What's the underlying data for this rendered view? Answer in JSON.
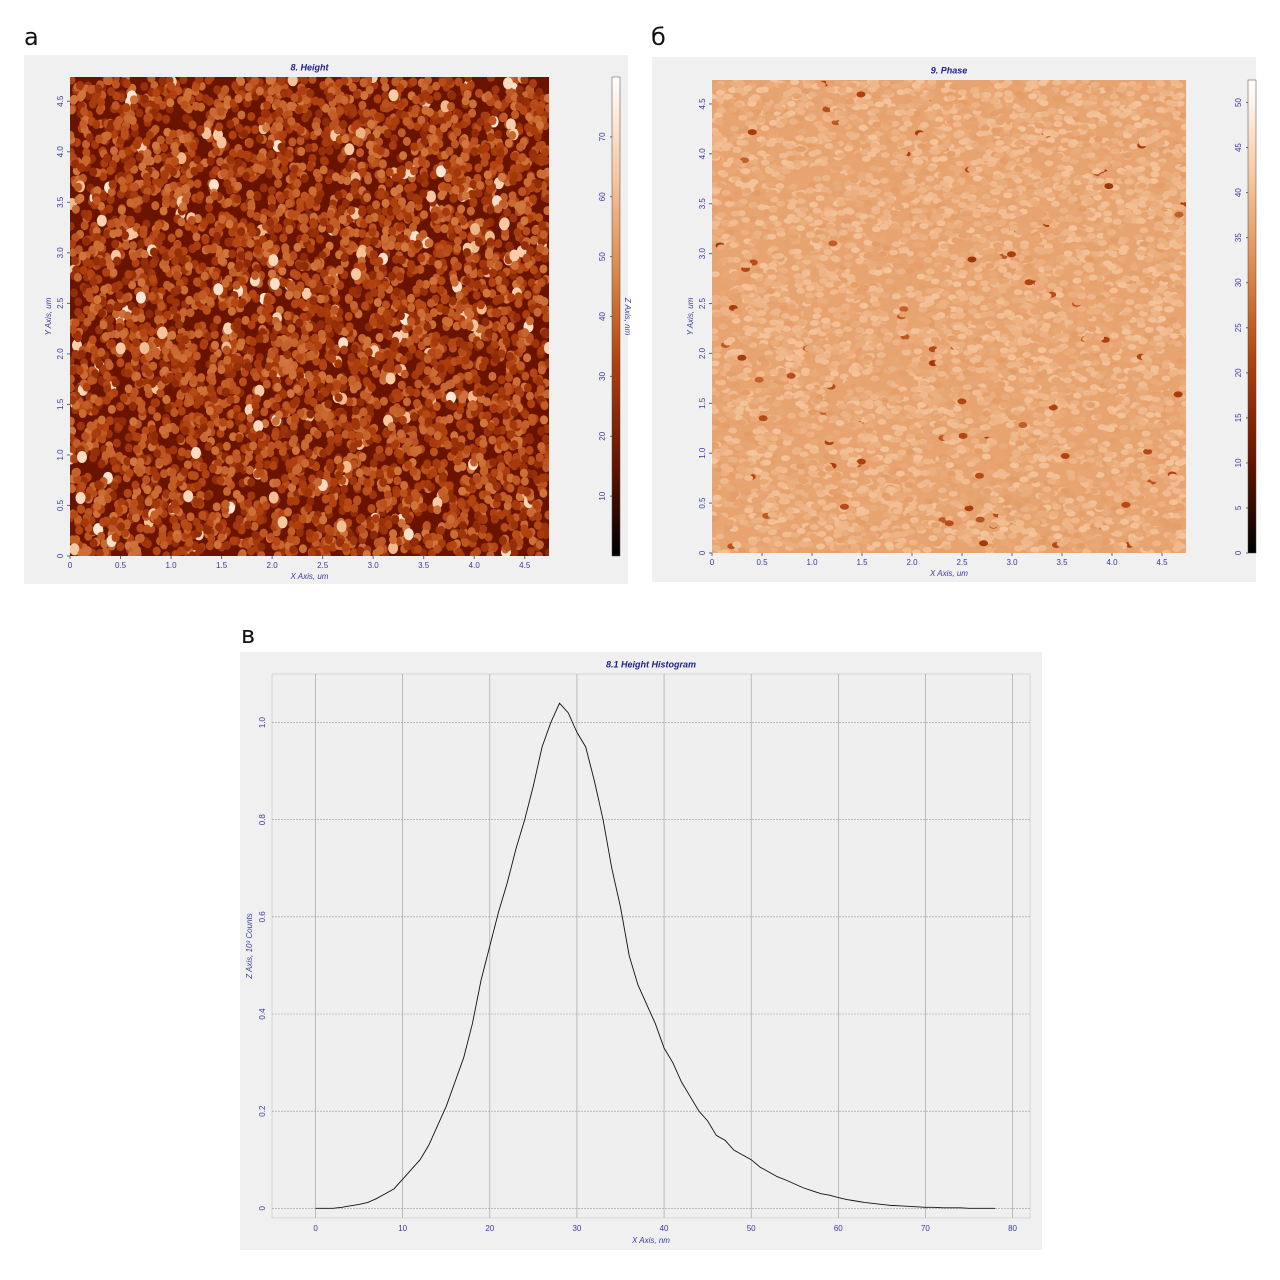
{
  "chart_data": [
    {
      "type": "heatmap",
      "label": "а",
      "title": "8. Height",
      "xlabel": "X Axis, um",
      "ylabel": "Y Axis, um",
      "zlabel": "Z Axis, nm",
      "xlim": [
        0,
        4.74
      ],
      "ylim": [
        0,
        4.74
      ],
      "xticks": [
        0,
        0.5,
        {
          "value": 1,
          "label": "1.0"
        },
        1.5,
        {
          "value": 2,
          "label": "2.0"
        },
        2.5,
        {
          "value": 3,
          "label": "3.0"
        },
        3.5,
        {
          "value": 4,
          "label": "4.0"
        },
        4.5
      ],
      "yticks": [
        0,
        0.5,
        {
          "value": 1,
          "label": "1.0"
        },
        1.5,
        {
          "value": 2,
          "label": "2.0"
        },
        2.5,
        {
          "value": 3,
          "label": "3.0"
        },
        3.5,
        {
          "value": 4,
          "label": "4.0"
        },
        4.5
      ],
      "zlim": [
        0,
        80
      ],
      "zticks": [
        10,
        20,
        30,
        40,
        50,
        60,
        70
      ],
      "colormap": [
        "#000000",
        "#6a1400",
        "#b0400e",
        "#dd8a4e",
        "#f7caa4",
        "#ffffff"
      ]
    },
    {
      "type": "heatmap",
      "label": "б",
      "title": "9. Phase",
      "xlabel": "X Axis, um",
      "ylabel": "Y Axis, um",
      "xlim": [
        0,
        4.74
      ],
      "ylim": [
        0,
        4.74
      ],
      "xticks": [
        0,
        0.5,
        {
          "value": 1,
          "label": "1.0"
        },
        1.5,
        {
          "value": 2,
          "label": "2.0"
        },
        2.5,
        {
          "value": 3,
          "label": "3.0"
        },
        3.5,
        {
          "value": 4,
          "label": "4.0"
        },
        4.5
      ],
      "yticks": [
        0,
        0.5,
        {
          "value": 1,
          "label": "1.0"
        },
        1.5,
        {
          "value": 2,
          "label": "2.0"
        },
        2.5,
        {
          "value": 3,
          "label": "3.0"
        },
        3.5,
        {
          "value": 4,
          "label": "4.0"
        },
        4.5
      ],
      "zlim": [
        0,
        52.5
      ],
      "zticks": [
        0,
        5,
        10,
        15,
        20,
        25,
        30,
        35,
        40,
        45,
        50
      ],
      "colormap": [
        "#000000",
        "#6a1400",
        "#b0400e",
        "#dd8a4e",
        "#f7caa4",
        "#ffffff"
      ]
    },
    {
      "type": "line",
      "label": "в",
      "title": "8.1 Height Histogram",
      "xlabel": "X Axis, nm",
      "ylabel": "Z Axis, 10³ Counts",
      "xlim": [
        -5,
        82
      ],
      "ylim": [
        -0.02,
        1.1
      ],
      "xticks": [
        0,
        10,
        20,
        30,
        40,
        50,
        60,
        70,
        80
      ],
      "yticks": [
        0,
        0.2,
        0.4,
        0.6,
        0.8,
        {
          "value": 1,
          "label": "1.0"
        }
      ],
      "grid": true,
      "color": "#111111",
      "x": [
        0,
        1,
        2,
        3,
        4,
        5,
        6,
        7,
        8,
        9,
        10,
        11,
        12,
        13,
        14,
        15,
        16,
        17,
        18,
        19,
        20,
        21,
        22,
        23,
        24,
        25,
        26,
        27,
        28,
        29,
        30,
        31,
        32,
        33,
        34,
        35,
        36,
        37,
        38,
        39,
        40,
        41,
        42,
        43,
        44,
        45,
        46,
        47,
        48,
        49,
        50,
        51,
        52,
        53,
        54,
        55,
        56,
        57,
        58,
        59,
        60,
        61,
        62,
        63,
        64,
        65,
        66,
        67,
        68,
        69,
        70,
        71,
        72,
        73,
        74,
        75,
        76,
        77,
        78
      ],
      "values": [
        0,
        0,
        0,
        0.002,
        0.005,
        0.008,
        0.012,
        0.02,
        0.03,
        0.04,
        0.06,
        0.08,
        0.1,
        0.13,
        0.17,
        0.21,
        0.26,
        0.31,
        0.38,
        0.47,
        0.54,
        0.61,
        0.67,
        0.74,
        0.8,
        0.87,
        0.95,
        1.0,
        1.04,
        1.02,
        0.98,
        0.95,
        0.88,
        0.8,
        0.7,
        0.62,
        0.52,
        0.46,
        0.42,
        0.38,
        0.33,
        0.3,
        0.26,
        0.23,
        0.2,
        0.18,
        0.15,
        0.14,
        0.12,
        0.11,
        0.1,
        0.085,
        0.075,
        0.065,
        0.058,
        0.05,
        0.042,
        0.036,
        0.03,
        0.027,
        0.022,
        0.018,
        0.015,
        0.012,
        0.01,
        0.008,
        0.006,
        0.005,
        0.004,
        0.003,
        0.002,
        0.002,
        0.001,
        0.001,
        0.001,
        0,
        0,
        0,
        0
      ]
    }
  ]
}
